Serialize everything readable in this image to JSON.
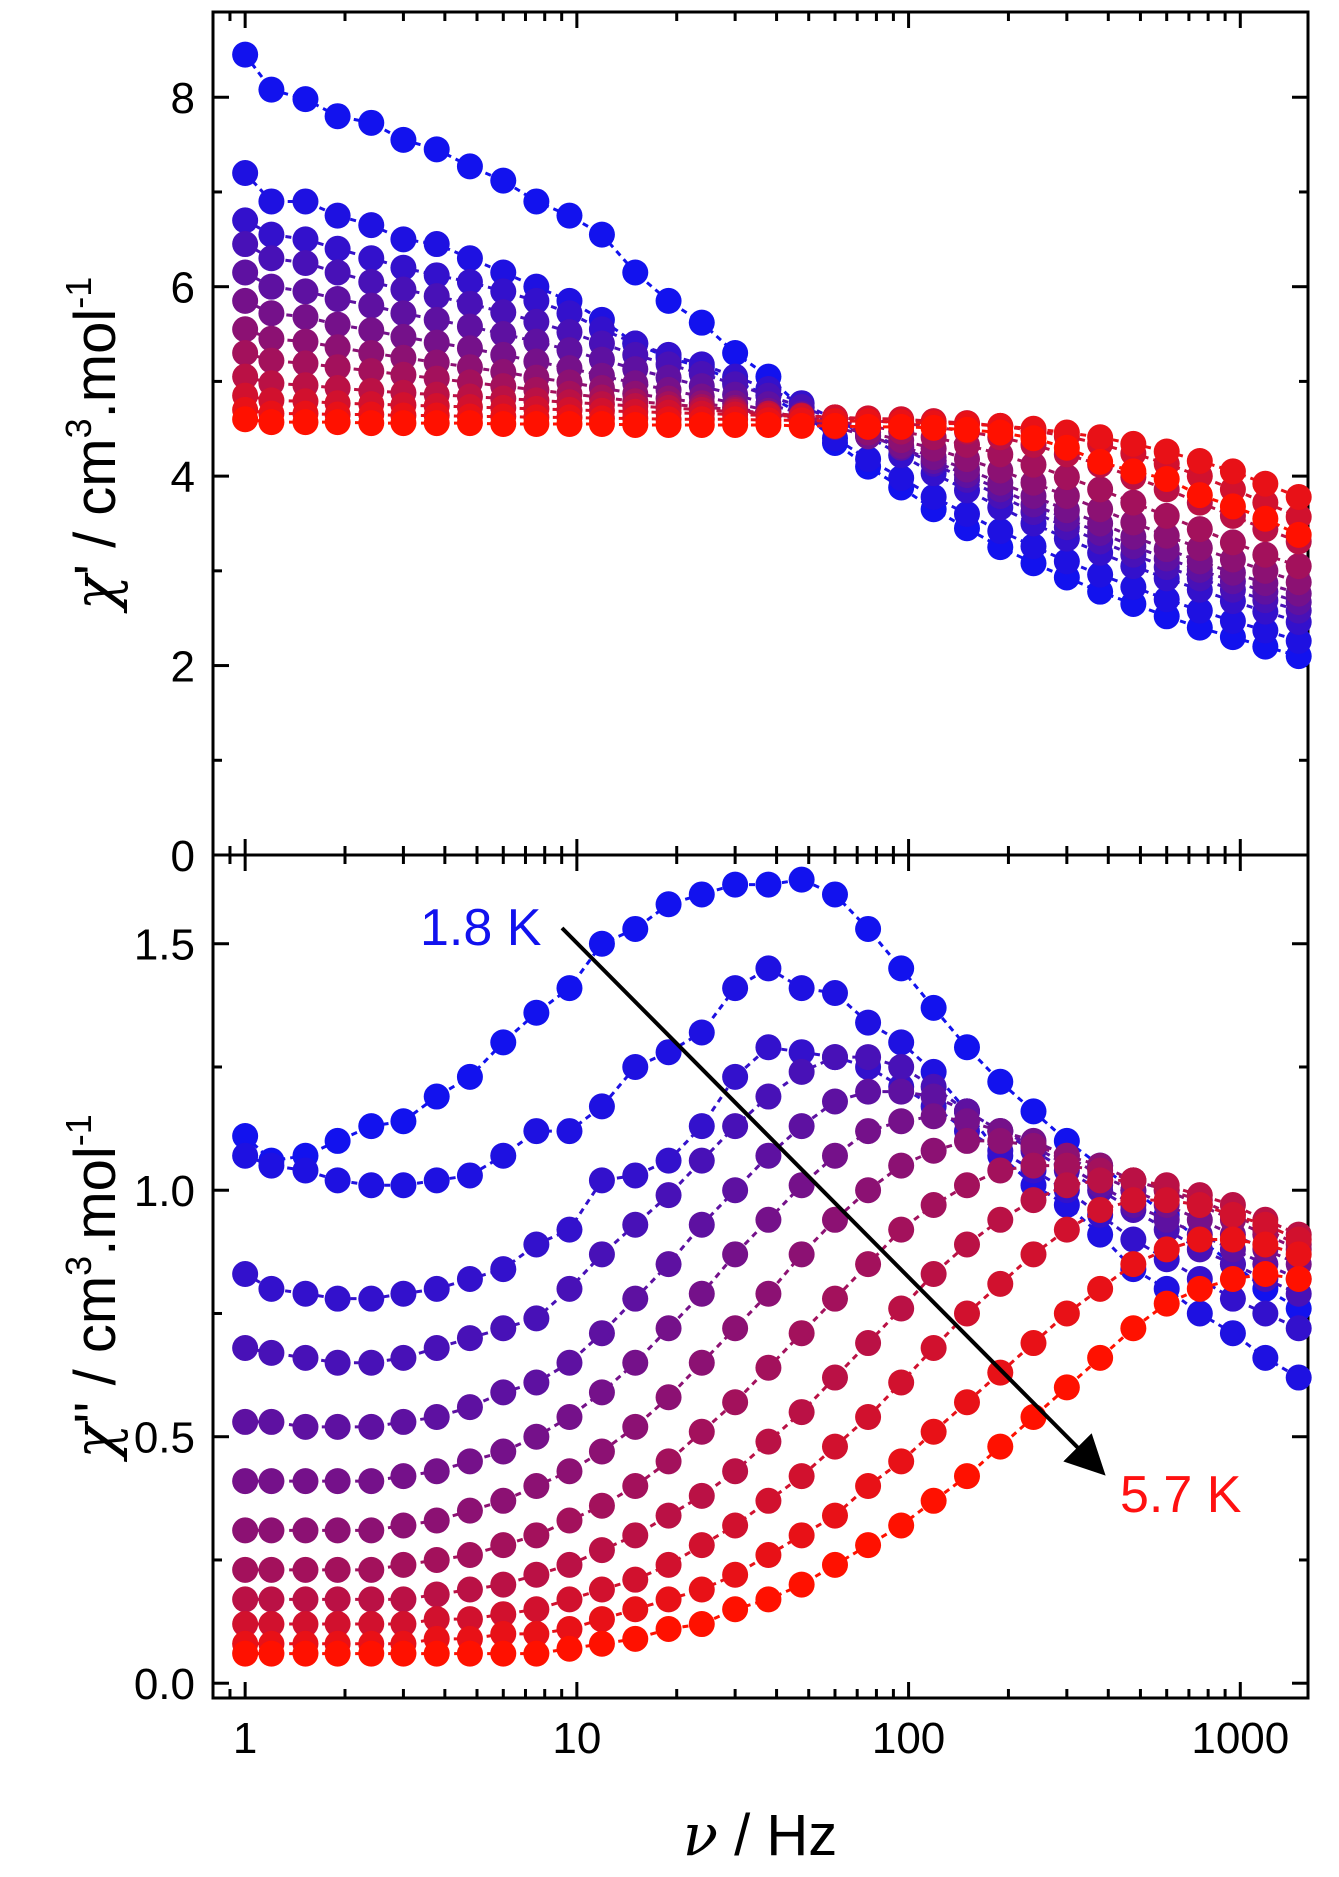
{
  "chart_data": [
    {
      "type": "scatter",
      "panel": "top",
      "ylabel": "χ' / cm³.mol⁻¹",
      "ylabel_parts": {
        "sym": "χ",
        "prime": "'",
        "mid": " / cm",
        "sup1": "3",
        "mid2": ".mol",
        "sup2": "-1"
      },
      "xscale": "log",
      "xlim": [
        0.8,
        1600
      ],
      "ylim": [
        0,
        8.9
      ],
      "yticks": [
        0,
        2,
        4,
        6,
        8
      ],
      "x": [
        1,
        1.2,
        1.52,
        1.9,
        2.4,
        3,
        3.78,
        4.76,
        6,
        7.55,
        9.5,
        11.9,
        15,
        18.9,
        23.8,
        30,
        37.8,
        47.6,
        60,
        75.5,
        95,
        119,
        150,
        189,
        238,
        300,
        378,
        476,
        600,
        755,
        950,
        1190,
        1500
      ],
      "series": [
        {
          "color": "#1212ee",
          "values": [
            8.45,
            8.08,
            7.98,
            7.8,
            7.73,
            7.55,
            7.45,
            7.27,
            7.12,
            6.9,
            6.75,
            6.55,
            6.15,
            5.85,
            5.62,
            5.3,
            5.05,
            4.72,
            4.35,
            4.1,
            3.88,
            3.65,
            3.45,
            3.25,
            3.08,
            2.93,
            2.78,
            2.65,
            2.52,
            2.4,
            2.3,
            2.2,
            2.1
          ]
        },
        {
          "color": "#1e11e1",
          "values": [
            7.2,
            6.9,
            6.9,
            6.75,
            6.65,
            6.5,
            6.45,
            6.3,
            6.15,
            6.0,
            5.85,
            5.65,
            5.4,
            5.25,
            5.15,
            5.0,
            4.85,
            4.65,
            4.4,
            4.18,
            3.98,
            3.78,
            3.6,
            3.42,
            3.26,
            3.1,
            2.96,
            2.83,
            2.7,
            2.58,
            2.47,
            2.37,
            2.26
          ]
        },
        {
          "color": "#3311cc",
          "values": [
            6.7,
            6.55,
            6.5,
            6.4,
            6.3,
            6.2,
            6.12,
            6.05,
            5.95,
            5.85,
            5.72,
            5.55,
            5.4,
            5.28,
            5.18,
            5.05,
            4.92,
            4.77,
            4.6,
            4.42,
            4.22,
            4.03,
            3.85,
            3.67,
            3.5,
            3.34,
            3.19,
            3.05,
            2.92,
            2.8,
            2.68,
            2.57,
            2.46
          ]
        },
        {
          "color": "#4811b7",
          "values": [
            6.45,
            6.3,
            6.25,
            6.15,
            6.05,
            5.97,
            5.9,
            5.82,
            5.73,
            5.63,
            5.52,
            5.4,
            5.28,
            5.18,
            5.08,
            4.97,
            4.85,
            4.73,
            4.6,
            4.46,
            4.3,
            4.13,
            3.96,
            3.79,
            3.62,
            3.46,
            3.31,
            3.17,
            3.04,
            2.92,
            2.8,
            2.69,
            2.58
          ]
        },
        {
          "color": "#5e11a1",
          "values": [
            6.15,
            6.0,
            5.95,
            5.87,
            5.8,
            5.72,
            5.65,
            5.58,
            5.5,
            5.42,
            5.33,
            5.23,
            5.13,
            5.04,
            4.95,
            4.86,
            4.76,
            4.66,
            4.55,
            4.43,
            4.3,
            4.16,
            4.01,
            3.86,
            3.7,
            3.55,
            3.4,
            3.26,
            3.13,
            3.01,
            2.89,
            2.78,
            2.67
          ]
        },
        {
          "color": "#75118a",
          "values": [
            5.85,
            5.72,
            5.68,
            5.6,
            5.54,
            5.47,
            5.41,
            5.35,
            5.28,
            5.21,
            5.14,
            5.06,
            4.98,
            4.91,
            4.84,
            4.77,
            4.69,
            4.61,
            4.52,
            4.42,
            4.32,
            4.2,
            4.07,
            3.93,
            3.79,
            3.64,
            3.5,
            3.36,
            3.23,
            3.1,
            2.98,
            2.87,
            2.76
          ]
        },
        {
          "color": "#8c1173",
          "values": [
            5.55,
            5.45,
            5.42,
            5.36,
            5.3,
            5.25,
            5.2,
            5.15,
            5.1,
            5.04,
            4.99,
            4.93,
            4.87,
            4.82,
            4.77,
            4.72,
            4.66,
            4.6,
            4.53,
            4.46,
            4.38,
            4.29,
            4.18,
            4.06,
            3.93,
            3.79,
            3.65,
            3.51,
            3.37,
            3.24,
            3.12,
            3.0,
            2.88
          ]
        },
        {
          "color": "#a3115c",
          "values": [
            5.3,
            5.22,
            5.19,
            5.15,
            5.11,
            5.07,
            5.03,
            4.99,
            4.95,
            4.91,
            4.87,
            4.83,
            4.79,
            4.76,
            4.73,
            4.7,
            4.66,
            4.62,
            4.58,
            4.53,
            4.47,
            4.41,
            4.33,
            4.23,
            4.12,
            3.99,
            3.86,
            3.72,
            3.58,
            3.44,
            3.3,
            3.17,
            3.05
          ]
        },
        {
          "color": "#ba1145",
          "values": [
            5.05,
            4.98,
            4.96,
            4.93,
            4.9,
            4.88,
            4.86,
            4.84,
            4.82,
            4.8,
            4.78,
            4.76,
            4.74,
            4.72,
            4.7,
            4.68,
            4.66,
            4.64,
            4.62,
            4.59,
            4.56,
            4.52,
            4.47,
            4.41,
            4.33,
            4.23,
            4.12,
            3.99,
            3.86,
            3.72,
            3.58,
            3.44,
            3.31
          ]
        },
        {
          "color": "#d1112e",
          "values": [
            4.85,
            4.8,
            4.79,
            4.77,
            4.76,
            4.75,
            4.74,
            4.73,
            4.72,
            4.71,
            4.7,
            4.69,
            4.68,
            4.67,
            4.66,
            4.65,
            4.64,
            4.63,
            4.62,
            4.61,
            4.6,
            4.58,
            4.56,
            4.53,
            4.48,
            4.42,
            4.34,
            4.24,
            4.13,
            4.0,
            3.86,
            3.72,
            3.57
          ]
        },
        {
          "color": "#e81117",
          "values": [
            4.7,
            4.66,
            4.66,
            4.65,
            4.65,
            4.64,
            4.64,
            4.63,
            4.63,
            4.62,
            4.62,
            4.61,
            4.61,
            4.6,
            4.6,
            4.6,
            4.59,
            4.59,
            4.58,
            4.58,
            4.57,
            4.56,
            4.55,
            4.53,
            4.5,
            4.46,
            4.41,
            4.34,
            4.26,
            4.16,
            4.05,
            3.92,
            3.78
          ]
        },
        {
          "color": "#ff1100",
          "values": [
            4.6,
            4.57,
            4.57,
            4.57,
            4.56,
            4.56,
            4.56,
            4.56,
            4.55,
            4.55,
            4.55,
            4.55,
            4.54,
            4.54,
            4.54,
            4.54,
            4.54,
            4.53,
            4.53,
            4.52,
            4.52,
            4.51,
            4.49,
            4.46,
            4.4,
            4.3,
            4.15,
            4.05,
            3.97,
            3.8,
            3.68,
            3.55,
            3.38
          ]
        }
      ]
    },
    {
      "type": "scatter",
      "panel": "bottom",
      "xlabel": "ν / Hz",
      "xlabel_parts": {
        "sym": "ν",
        "rest": " / Hz"
      },
      "ylabel": "χ'' / cm³.mol⁻¹",
      "ylabel_parts": {
        "sym": "χ",
        "prime": "''",
        "mid": " / cm",
        "sup1": "3",
        "mid2": ".mol",
        "sup2": "-1"
      },
      "xscale": "log",
      "xlim": [
        0.8,
        1600
      ],
      "ylim": [
        -0.03,
        1.68
      ],
      "yticks": [
        "0.0",
        "0.5",
        "1.0",
        "1.5"
      ],
      "xticks": [
        "1",
        "10",
        "100",
        "1000"
      ],
      "x": [
        1,
        1.2,
        1.52,
        1.9,
        2.4,
        3,
        3.78,
        4.76,
        6,
        7.55,
        9.5,
        11.9,
        15,
        18.9,
        23.8,
        30,
        37.8,
        47.6,
        60,
        75.5,
        95,
        119,
        150,
        189,
        238,
        300,
        378,
        476,
        600,
        755,
        950,
        1190,
        1500
      ],
      "series": [
        {
          "color": "#1212ee",
          "values": [
            1.11,
            1.06,
            1.07,
            1.1,
            1.13,
            1.14,
            1.19,
            1.23,
            1.3,
            1.36,
            1.41,
            1.5,
            1.53,
            1.58,
            1.6,
            1.62,
            1.62,
            1.63,
            1.6,
            1.53,
            1.45,
            1.37,
            1.29,
            1.22,
            1.16,
            1.1,
            1.05,
            1.0,
            0.95,
            0.9,
            0.85,
            0.8,
            0.76
          ]
        },
        {
          "color": "#1e11e1",
          "values": [
            1.07,
            1.05,
            1.04,
            1.02,
            1.01,
            1.01,
            1.02,
            1.03,
            1.07,
            1.12,
            1.12,
            1.17,
            1.25,
            1.28,
            1.32,
            1.41,
            1.45,
            1.41,
            1.4,
            1.34,
            1.3,
            1.24,
            1.16,
            1.07,
            1.01,
            0.97,
            0.91,
            0.84,
            0.8,
            0.75,
            0.71,
            0.66,
            0.62
          ]
        },
        {
          "color": "#3311cc",
          "values": [
            0.83,
            0.8,
            0.79,
            0.78,
            0.78,
            0.79,
            0.8,
            0.82,
            0.84,
            0.89,
            0.92,
            1.02,
            1.03,
            1.06,
            1.13,
            1.23,
            1.29,
            1.28,
            1.27,
            1.25,
            1.21,
            1.17,
            1.12,
            1.08,
            1.04,
            1.0,
            0.95,
            0.9,
            0.86,
            0.82,
            0.78,
            0.75,
            0.72
          ]
        },
        {
          "color": "#4811b7",
          "values": [
            0.68,
            0.67,
            0.66,
            0.65,
            0.65,
            0.66,
            0.68,
            0.7,
            0.72,
            0.74,
            0.8,
            0.87,
            0.93,
            0.99,
            1.06,
            1.13,
            1.19,
            1.24,
            1.27,
            1.27,
            1.25,
            1.21,
            1.16,
            1.12,
            1.08,
            1.04,
            1.0,
            0.96,
            0.92,
            0.88,
            0.85,
            0.82,
            0.79
          ]
        },
        {
          "color": "#5e11a1",
          "values": [
            0.53,
            0.53,
            0.52,
            0.52,
            0.52,
            0.53,
            0.54,
            0.56,
            0.59,
            0.61,
            0.65,
            0.71,
            0.78,
            0.85,
            0.93,
            1.0,
            1.07,
            1.13,
            1.18,
            1.2,
            1.2,
            1.19,
            1.16,
            1.12,
            1.09,
            1.05,
            1.01,
            0.97,
            0.94,
            0.91,
            0.88,
            0.85,
            0.82
          ]
        },
        {
          "color": "#75118a",
          "values": [
            0.41,
            0.41,
            0.41,
            0.41,
            0.41,
            0.42,
            0.43,
            0.45,
            0.47,
            0.5,
            0.54,
            0.59,
            0.65,
            0.72,
            0.79,
            0.87,
            0.94,
            1.01,
            1.07,
            1.12,
            1.14,
            1.15,
            1.14,
            1.12,
            1.1,
            1.07,
            1.03,
            1.0,
            0.97,
            0.94,
            0.91,
            0.88,
            0.85
          ]
        },
        {
          "color": "#8c1173",
          "values": [
            0.31,
            0.31,
            0.31,
            0.31,
            0.31,
            0.32,
            0.33,
            0.35,
            0.37,
            0.4,
            0.43,
            0.47,
            0.52,
            0.58,
            0.65,
            0.72,
            0.79,
            0.87,
            0.94,
            1.0,
            1.05,
            1.08,
            1.1,
            1.1,
            1.09,
            1.07,
            1.05,
            1.02,
            1.0,
            0.97,
            0.94,
            0.91,
            0.88
          ]
        },
        {
          "color": "#a3115c",
          "values": [
            0.23,
            0.23,
            0.23,
            0.23,
            0.23,
            0.24,
            0.25,
            0.26,
            0.28,
            0.3,
            0.33,
            0.36,
            0.4,
            0.45,
            0.51,
            0.57,
            0.64,
            0.71,
            0.78,
            0.85,
            0.92,
            0.97,
            1.01,
            1.04,
            1.05,
            1.05,
            1.04,
            1.02,
            1.0,
            0.98,
            0.95,
            0.92,
            0.89
          ]
        },
        {
          "color": "#ba1145",
          "values": [
            0.17,
            0.17,
            0.17,
            0.17,
            0.17,
            0.17,
            0.18,
            0.19,
            0.2,
            0.22,
            0.24,
            0.27,
            0.3,
            0.34,
            0.38,
            0.43,
            0.49,
            0.55,
            0.62,
            0.69,
            0.76,
            0.83,
            0.89,
            0.94,
            0.98,
            1.01,
            1.02,
            1.02,
            1.01,
            0.99,
            0.97,
            0.94,
            0.91
          ]
        },
        {
          "color": "#d1112e",
          "values": [
            0.12,
            0.12,
            0.12,
            0.12,
            0.12,
            0.12,
            0.13,
            0.13,
            0.14,
            0.15,
            0.17,
            0.19,
            0.21,
            0.24,
            0.28,
            0.32,
            0.37,
            0.42,
            0.48,
            0.54,
            0.61,
            0.68,
            0.75,
            0.81,
            0.87,
            0.92,
            0.96,
            0.98,
            0.98,
            0.97,
            0.95,
            0.93,
            0.9
          ]
        },
        {
          "color": "#e81117",
          "values": [
            0.08,
            0.08,
            0.08,
            0.08,
            0.08,
            0.08,
            0.09,
            0.09,
            0.1,
            0.1,
            0.11,
            0.13,
            0.15,
            0.17,
            0.19,
            0.22,
            0.26,
            0.3,
            0.34,
            0.4,
            0.45,
            0.51,
            0.57,
            0.63,
            0.69,
            0.75,
            0.8,
            0.85,
            0.88,
            0.9,
            0.9,
            0.89,
            0.87
          ]
        },
        {
          "color": "#ff1100",
          "values": [
            0.06,
            0.06,
            0.06,
            0.06,
            0.06,
            0.06,
            0.06,
            0.06,
            0.06,
            0.06,
            0.07,
            0.08,
            0.09,
            0.11,
            0.12,
            0.15,
            0.17,
            0.2,
            0.24,
            0.28,
            0.32,
            0.37,
            0.42,
            0.48,
            0.54,
            0.6,
            0.66,
            0.72,
            0.77,
            0.8,
            0.82,
            0.83,
            0.82
          ]
        }
      ],
      "annotations": {
        "start_label": "1.8 K",
        "start_color": "#1111ee",
        "end_label": "5.7 K",
        "end_color": "#ff1111"
      }
    }
  ]
}
